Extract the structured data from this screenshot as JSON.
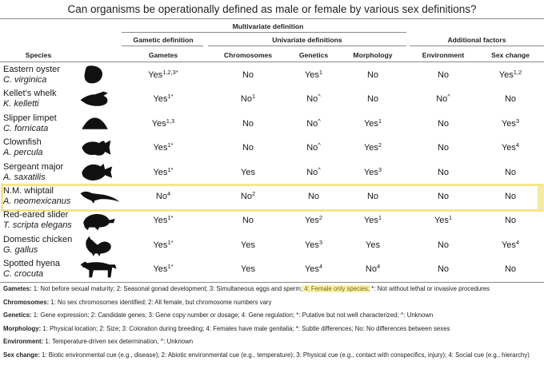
{
  "title": "Can organisms be operationally defined as male or female by various sex definitions?",
  "headers": {
    "multivariate": "Multivariate definition",
    "gametic": "Gametic definition",
    "univariate": "Univariate definitions",
    "additional": "Additional factors",
    "species": "Species",
    "columns": [
      "Gametes",
      "Chromosomes",
      "Genetics",
      "Morphology",
      "Environment",
      "Sex change"
    ]
  },
  "rows": [
    {
      "common": "Eastern oyster",
      "sci": "C. virginica",
      "icon": "oyster-silhouette-icon",
      "cells": [
        [
          "Yes",
          "1,2,3*"
        ],
        [
          "No",
          ""
        ],
        [
          "Yes",
          "1"
        ],
        [
          "No",
          ""
        ],
        [
          "No",
          ""
        ],
        [
          "Yes",
          "1,2"
        ]
      ]
    },
    {
      "common": "Kellet’s whelk",
      "sci": "K. kelletti",
      "icon": "whelk-silhouette-icon",
      "cells": [
        [
          "Yes",
          "1*"
        ],
        [
          "No",
          "1"
        ],
        [
          "No",
          "^"
        ],
        [
          "No",
          ""
        ],
        [
          "No",
          "^"
        ],
        [
          "No",
          ""
        ]
      ]
    },
    {
      "common": "Slipper limpet",
      "sci": "C. fornicata",
      "icon": "limpet-silhouette-icon",
      "cells": [
        [
          "Yes",
          "1,3"
        ],
        [
          "No",
          ""
        ],
        [
          "No",
          "^"
        ],
        [
          "Yes",
          "1"
        ],
        [
          "No",
          ""
        ],
        [
          "Yes",
          "3"
        ]
      ]
    },
    {
      "common": "Clownfish",
      "sci": "A. percula",
      "icon": "clownfish-silhouette-icon",
      "cells": [
        [
          "Yes",
          "1*"
        ],
        [
          "No",
          ""
        ],
        [
          "No",
          "^"
        ],
        [
          "Yes",
          "2"
        ],
        [
          "No",
          ""
        ],
        [
          "Yes",
          "4"
        ]
      ]
    },
    {
      "common": "Sergeant major",
      "sci": "A. saxatilis",
      "icon": "sergeant-major-silhouette-icon",
      "cells": [
        [
          "Yes",
          "1*"
        ],
        [
          "Yes",
          ""
        ],
        [
          "No",
          "^"
        ],
        [
          "Yes",
          "3"
        ],
        [
          "No",
          ""
        ],
        [
          "No",
          ""
        ]
      ]
    },
    {
      "common": "N.M. whiptail",
      "sci": "A. neomexicanus",
      "icon": "whiptail-lizard-silhouette-icon",
      "cells": [
        [
          "No",
          "4"
        ],
        [
          "No",
          "2"
        ],
        [
          "No",
          ""
        ],
        [
          "No",
          ""
        ],
        [
          "No",
          ""
        ],
        [
          "No",
          ""
        ]
      ]
    },
    {
      "common": "Red-eared slider",
      "sci": "T. scripta elegans",
      "icon": "turtle-silhouette-icon",
      "cells": [
        [
          "Yes",
          "1*"
        ],
        [
          "No",
          ""
        ],
        [
          "Yes",
          "2"
        ],
        [
          "Yes",
          "1"
        ],
        [
          "Yes",
          "1"
        ],
        [
          "No",
          ""
        ]
      ]
    },
    {
      "common": "Domestic chicken",
      "sci": "G. gallus",
      "icon": "chicken-silhouette-icon",
      "cells": [
        [
          "Yes",
          "1*"
        ],
        [
          "Yes",
          ""
        ],
        [
          "Yes",
          "3"
        ],
        [
          "Yes",
          ""
        ],
        [
          "No",
          ""
        ],
        [
          "Yes",
          "4"
        ]
      ]
    },
    {
      "common": "Spotted hyena",
      "sci": "C. crocuta",
      "icon": "hyena-silhouette-icon",
      "cells": [
        [
          "Yes",
          "1*"
        ],
        [
          "Yes",
          ""
        ],
        [
          "Yes",
          "4"
        ],
        [
          "No",
          "4"
        ],
        [
          "No",
          ""
        ],
        [
          "No",
          ""
        ]
      ]
    }
  ],
  "highlight_color": "#f6e68a",
  "legend": {
    "gametes_label": "Gametes:",
    "gametes_text": " 1: Not before sexual maturity; 2: Seasonal gonad development; 3: Simultaneous eggs and sperm;",
    "gametes_highlight": " 4: Female only species;",
    "gametes_text2": " *: Not without lethal or invasive procedures",
    "chromosomes_label": "Chromosomes:",
    "chromosomes_text": " 1: No sex chromosomes identified; 2: All female, but chromosome numbers vary",
    "genetics_label": "Genetics:",
    "genetics_text": " 1: Gene expression; 2: Candidate genes; 3: Gene copy number or dosage; 4: Gene regulation; *: Putative but not well characterized; ^: Unknown",
    "morphology_label": "Morphology:",
    "morphology_text": " 1: Physical location; 2: Size; 3: Coloration during breeding; 4: Females have male genitalia; *: Subtle differences; No: No differences between sexes",
    "environment_label": "Environment:",
    "environment_text": " 1: Temperature-driven sex determination, ^: Unknown",
    "sexchange_label": "Sex change:",
    "sexchange_text": " 1: Biotic environmental cue (e.g., disease); 2: Abiotic environmental cue (e.g., temperature); 3: Physical cue (e.g., contact with conspecifics, injury); 4: Social cue (e.g., hierarchy)"
  }
}
